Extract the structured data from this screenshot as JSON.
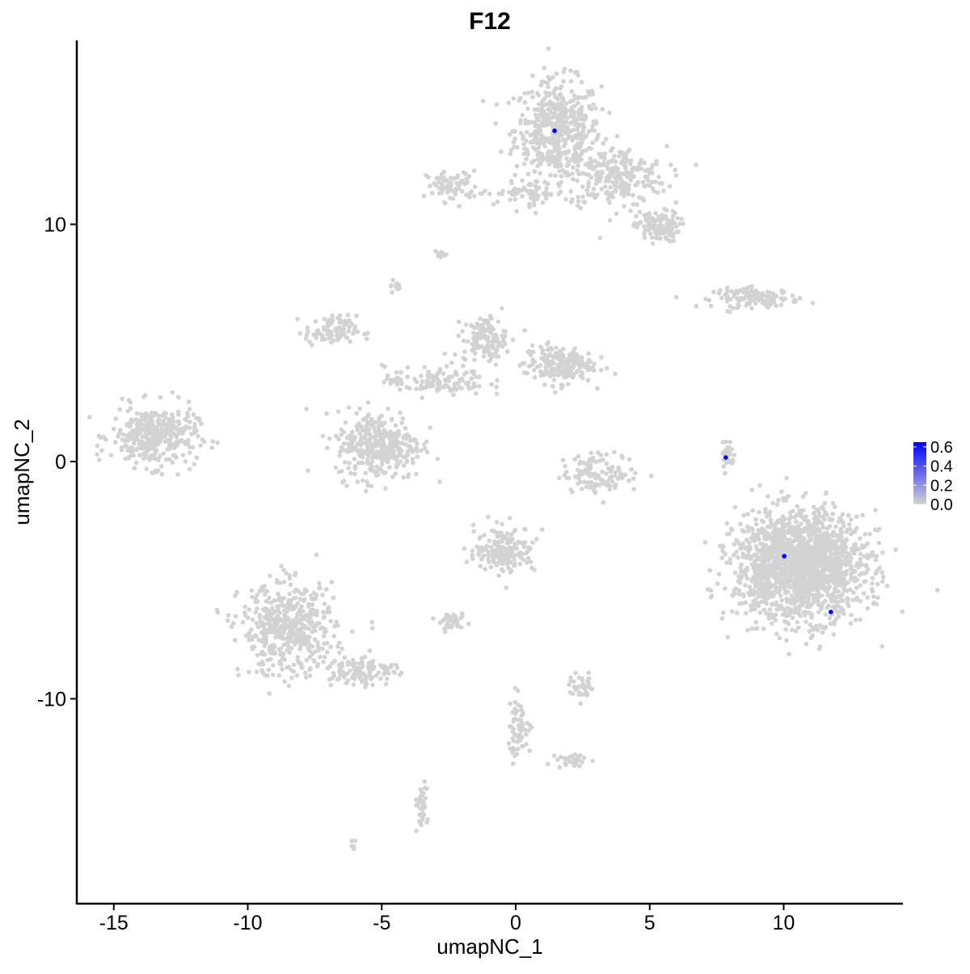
{
  "chart_data": {
    "type": "scatter",
    "title": "F12",
    "xlabel": "umapNC_1",
    "ylabel": "umapNC_2",
    "xlim": [
      -16.4,
      14.45
    ],
    "ylim": [
      -18.6,
      17.75
    ],
    "x_ticks": [
      -15,
      -10,
      -5,
      0,
      5,
      10
    ],
    "y_ticks": [
      -10,
      0,
      10
    ],
    "x_tick_labels": [
      "-15",
      "-10",
      "-5",
      "0",
      "5",
      "10"
    ],
    "y_tick_labels": [
      "-10",
      "0",
      "10"
    ],
    "grid": false,
    "colors": {
      "low": "#D3D3D3",
      "high": "#0000FF"
    },
    "legend": {
      "placement": "right",
      "type": "colorbar",
      "range": [
        0,
        0.65
      ],
      "ticks": [
        0.0,
        0.2,
        0.4,
        0.6
      ],
      "tick_labels": [
        "0.0",
        "0.2",
        "0.4",
        "0.6"
      ]
    },
    "expressing_points": [
      {
        "x": 1.45,
        "y": 13.94,
        "value": 0.65
      },
      {
        "x": 7.84,
        "y": 0.17,
        "value": 0.65
      },
      {
        "x": 10.02,
        "y": -3.99,
        "value": 0.65
      },
      {
        "x": 11.76,
        "y": -6.34,
        "value": 0.65
      }
    ],
    "background_clusters": [
      {
        "x": 1.57,
        "y": 14.0,
        "sx": 1.0,
        "sy": 1.3,
        "n": 500
      },
      {
        "x": 3.7,
        "y": 12.0,
        "sx": 1.2,
        "sy": 0.8,
        "n": 250
      },
      {
        "x": 5.3,
        "y": 9.9,
        "sx": 0.5,
        "sy": 0.4,
        "n": 120
      },
      {
        "x": -2.35,
        "y": 11.6,
        "sx": 0.6,
        "sy": 0.4,
        "n": 80
      },
      {
        "x": 0.4,
        "y": 11.3,
        "sx": 1.0,
        "sy": 0.3,
        "n": 60
      },
      {
        "x": -2.8,
        "y": 8.7,
        "sx": 0.15,
        "sy": 0.1,
        "n": 10
      },
      {
        "x": -4.55,
        "y": 7.45,
        "sx": 0.15,
        "sy": 0.15,
        "n": 10
      },
      {
        "x": 9.0,
        "y": 6.9,
        "sx": 1.0,
        "sy": 0.25,
        "n": 120
      },
      {
        "x": -13.5,
        "y": 1.05,
        "sx": 1.0,
        "sy": 0.8,
        "n": 350
      },
      {
        "x": -6.9,
        "y": 5.5,
        "sx": 0.6,
        "sy": 0.4,
        "n": 100
      },
      {
        "x": -5.1,
        "y": 0.7,
        "sx": 1.0,
        "sy": 0.9,
        "n": 350
      },
      {
        "x": -1.15,
        "y": 5.15,
        "sx": 0.5,
        "sy": 0.6,
        "n": 120
      },
      {
        "x": 1.6,
        "y": 4.1,
        "sx": 0.8,
        "sy": 0.5,
        "n": 200
      },
      {
        "x": -3.0,
        "y": 3.4,
        "sx": 1.2,
        "sy": 0.4,
        "n": 120
      },
      {
        "x": 3.2,
        "y": -0.5,
        "sx": 0.9,
        "sy": 0.5,
        "n": 120
      },
      {
        "x": 7.9,
        "y": 0.3,
        "sx": 0.15,
        "sy": 0.5,
        "n": 30
      },
      {
        "x": 10.6,
        "y": -4.4,
        "sx": 1.5,
        "sy": 1.4,
        "n": 1800
      },
      {
        "x": -0.4,
        "y": -3.7,
        "sx": 0.7,
        "sy": 0.6,
        "n": 180
      },
      {
        "x": -8.5,
        "y": -7.1,
        "sx": 1.1,
        "sy": 1.2,
        "n": 500
      },
      {
        "x": -5.7,
        "y": -8.8,
        "sx": 0.8,
        "sy": 0.4,
        "n": 120
      },
      {
        "x": -2.35,
        "y": -6.8,
        "sx": 0.3,
        "sy": 0.2,
        "n": 40
      },
      {
        "x": 2.5,
        "y": -9.5,
        "sx": 0.3,
        "sy": 0.3,
        "n": 40
      },
      {
        "x": 0.1,
        "y": -11.2,
        "sx": 0.3,
        "sy": 0.8,
        "n": 60
      },
      {
        "x": 2.2,
        "y": -12.6,
        "sx": 0.4,
        "sy": 0.2,
        "n": 30
      },
      {
        "x": -3.55,
        "y": -14.6,
        "sx": 0.15,
        "sy": 0.6,
        "n": 40
      },
      {
        "x": -6.05,
        "y": -16.1,
        "sx": 0.1,
        "sy": 0.1,
        "n": 5
      }
    ]
  }
}
